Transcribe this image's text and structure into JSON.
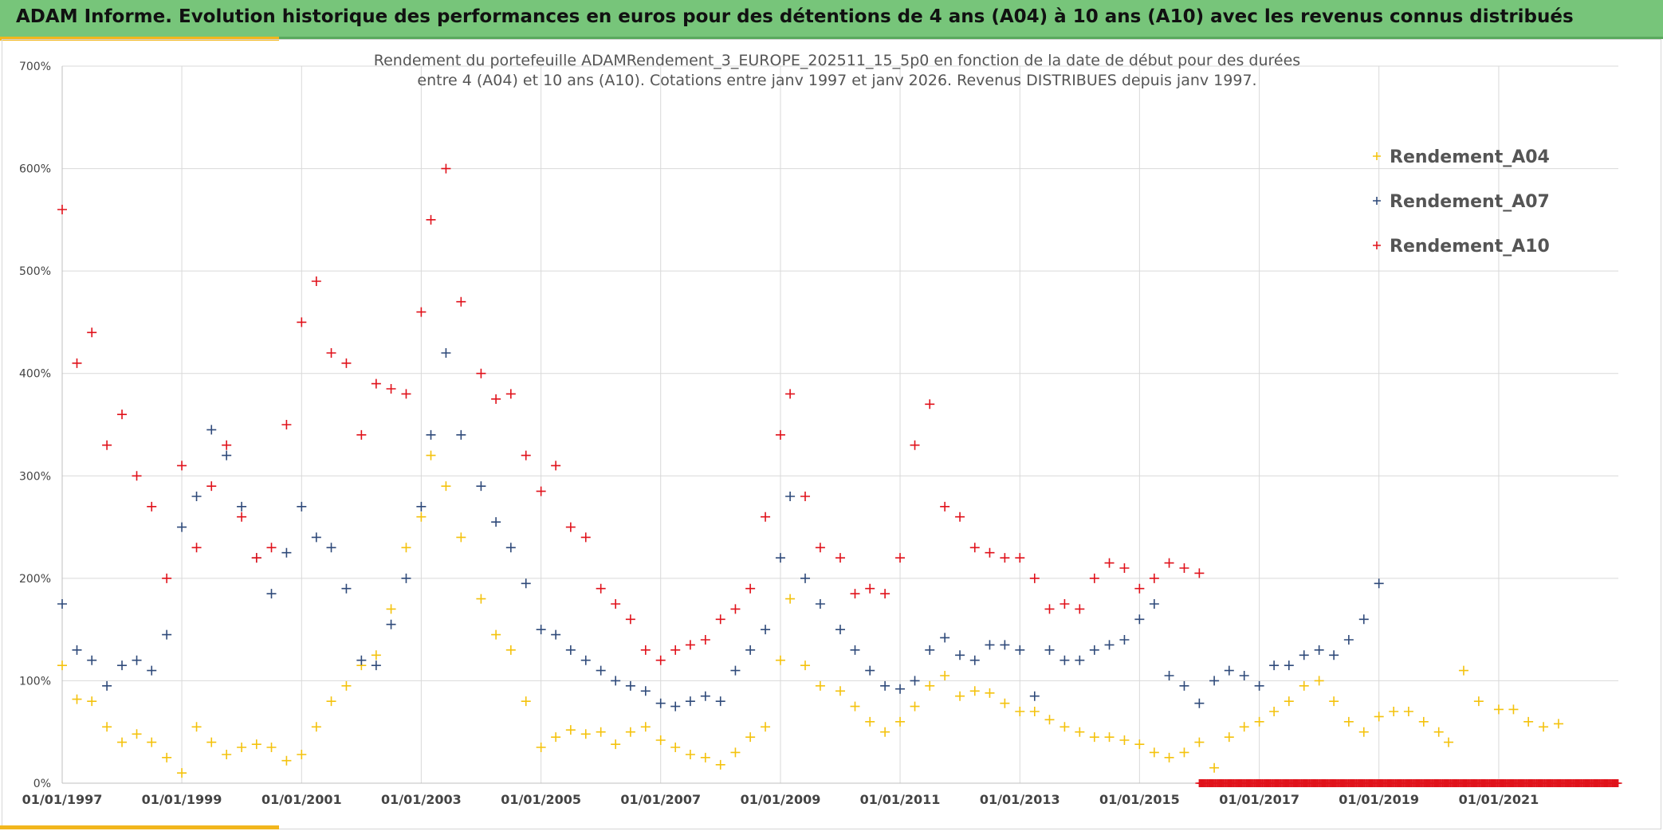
{
  "banner": {
    "title": "ADAM Informe. Evolution historique des performances en euros pour des détentions de 4 ans (A04) à 10 ans (A10) avec les revenus connus distribués"
  },
  "colors": {
    "banner": "#77c57a",
    "accent": "#f2b61c",
    "A04": "#f4c20d",
    "A07": "#2f4a7a",
    "A10": "#e0121b",
    "grid": "#d9d9d9"
  },
  "chart_data": {
    "type": "scatter",
    "title_line1": "Rendement du portefeuille ADAMRendement_3_EUROPE_202511_15_5p0  en fonction de la date de début pour des durées",
    "title_line2": "entre 4 (A04) et 10 ans (A10). Cotations entre janv 1997 et janv 2026. Revenus DISTRIBUES depuis janv 1997.",
    "marker": "+",
    "xlim": [
      "1997-01-01",
      "2023-01-01"
    ],
    "ylim": [
      0,
      7
    ],
    "y_ticks": [
      0,
      1,
      2,
      3,
      4,
      5,
      6,
      7
    ],
    "y_tick_labels": [
      "0%",
      "100%",
      "200%",
      "300%",
      "400%",
      "500%",
      "600%",
      "700%"
    ],
    "x_ticks": [
      "1997-01-01",
      "1999-01-01",
      "2001-01-01",
      "2003-01-01",
      "2005-01-01",
      "2007-01-01",
      "2009-01-01",
      "2011-01-01",
      "2013-01-01",
      "2015-01-01",
      "2017-01-01",
      "2019-01-01",
      "2021-01-01"
    ],
    "x_tick_labels": [
      "01/01/1997",
      "01/01/1999",
      "01/01/2001",
      "01/01/2003",
      "01/01/2005",
      "01/01/2007",
      "01/01/2009",
      "01/01/2011",
      "01/01/2013",
      "01/01/2015",
      "01/01/2017",
      "01/01/2019",
      "01/01/2021"
    ],
    "grid": true,
    "legend": "right",
    "series": [
      {
        "name": "Rendement_A04",
        "color": "#f4c20d",
        "x": [
          "1997-01-01",
          "1997-04-01",
          "1997-07-01",
          "1997-10-01",
          "1998-01-01",
          "1998-04-01",
          "1998-07-01",
          "1998-10-01",
          "1999-01-01",
          "1999-04-01",
          "1999-07-01",
          "1999-10-01",
          "2000-01-01",
          "2000-04-01",
          "2000-07-01",
          "2000-10-01",
          "2001-01-01",
          "2001-04-01",
          "2001-07-01",
          "2001-10-01",
          "2002-01-01",
          "2002-04-01",
          "2002-07-01",
          "2002-10-01",
          "2003-01-01",
          "2003-03-01",
          "2003-06-01",
          "2003-09-01",
          "2004-01-01",
          "2004-04-01",
          "2004-07-01",
          "2004-10-01",
          "2005-01-01",
          "2005-04-01",
          "2005-07-01",
          "2005-10-01",
          "2006-01-01",
          "2006-04-01",
          "2006-07-01",
          "2006-10-01",
          "2007-01-01",
          "2007-04-01",
          "2007-07-01",
          "2007-10-01",
          "2008-01-01",
          "2008-04-01",
          "2008-07-01",
          "2008-10-01",
          "2009-01-01",
          "2009-03-01",
          "2009-06-01",
          "2009-09-01",
          "2010-01-01",
          "2010-04-01",
          "2010-07-01",
          "2010-10-01",
          "2011-01-01",
          "2011-04-01",
          "2011-07-01",
          "2011-10-01",
          "2012-01-01",
          "2012-04-01",
          "2012-07-01",
          "2012-10-01",
          "2013-01-01",
          "2013-04-01",
          "2013-07-01",
          "2013-10-01",
          "2014-01-01",
          "2014-04-01",
          "2014-07-01",
          "2014-10-01",
          "2015-01-01",
          "2015-04-01",
          "2015-07-01",
          "2015-10-01",
          "2016-01-01",
          "2016-04-01",
          "2016-07-01",
          "2016-10-01",
          "2017-01-01",
          "2017-04-01",
          "2017-07-01",
          "2017-10-01",
          "2018-01-01",
          "2018-04-01",
          "2018-07-01",
          "2018-10-01",
          "2019-01-01",
          "2019-04-01",
          "2019-07-01",
          "2019-10-01",
          "2020-01-01",
          "2020-03-01",
          "2020-06-01",
          "2020-09-01",
          "2021-01-01",
          "2021-04-01",
          "2021-07-01",
          "2021-10-01",
          "2022-01-01"
        ],
        "values": [
          1.15,
          0.82,
          0.8,
          0.55,
          0.4,
          0.48,
          0.4,
          0.25,
          0.1,
          0.55,
          0.4,
          0.28,
          0.35,
          0.38,
          0.35,
          0.22,
          0.28,
          0.55,
          0.8,
          0.95,
          1.15,
          1.25,
          1.7,
          2.3,
          2.6,
          3.2,
          2.9,
          2.4,
          1.8,
          1.45,
          1.3,
          0.8,
          0.35,
          0.45,
          0.52,
          0.48,
          0.5,
          0.38,
          0.5,
          0.55,
          0.42,
          0.35,
          0.28,
          0.25,
          0.18,
          0.3,
          0.45,
          0.55,
          1.2,
          1.8,
          1.15,
          0.95,
          0.9,
          0.75,
          0.6,
          0.5,
          0.6,
          0.75,
          0.95,
          1.05,
          0.85,
          0.9,
          0.88,
          0.78,
          0.7,
          0.7,
          0.62,
          0.55,
          0.5,
          0.45,
          0.45,
          0.42,
          0.38,
          0.3,
          0.25,
          0.3,
          0.4,
          0.15,
          0.45,
          0.55,
          0.6,
          0.7,
          0.8,
          0.95,
          1.0,
          0.8,
          0.6,
          0.5,
          0.65,
          0.7,
          0.7,
          0.6,
          0.5,
          0.4,
          1.1,
          0.8,
          0.72,
          0.72,
          0.6,
          0.55,
          0.58
        ]
      },
      {
        "name": "Rendement_A07",
        "color": "#2f4a7a",
        "x": [
          "1997-01-01",
          "1997-04-01",
          "1997-07-01",
          "1997-10-01",
          "1998-01-01",
          "1998-04-01",
          "1998-07-01",
          "1998-10-01",
          "1999-01-01",
          "1999-04-01",
          "1999-07-01",
          "1999-10-01",
          "2000-01-01",
          "2000-04-01",
          "2000-07-01",
          "2000-10-01",
          "2001-01-01",
          "2001-04-01",
          "2001-07-01",
          "2001-10-01",
          "2002-01-01",
          "2002-04-01",
          "2002-07-01",
          "2002-10-01",
          "2003-01-01",
          "2003-03-01",
          "2003-06-01",
          "2003-09-01",
          "2004-01-01",
          "2004-04-01",
          "2004-07-01",
          "2004-10-01",
          "2005-01-01",
          "2005-04-01",
          "2005-07-01",
          "2005-10-01",
          "2006-01-01",
          "2006-04-01",
          "2006-07-01",
          "2006-10-01",
          "2007-01-01",
          "2007-04-01",
          "2007-07-01",
          "2007-10-01",
          "2008-01-01",
          "2008-04-01",
          "2008-07-01",
          "2008-10-01",
          "2009-01-01",
          "2009-03-01",
          "2009-06-01",
          "2009-09-01",
          "2010-01-01",
          "2010-04-01",
          "2010-07-01",
          "2010-10-01",
          "2011-01-01",
          "2011-04-01",
          "2011-07-01",
          "2011-10-01",
          "2012-01-01",
          "2012-04-01",
          "2012-07-01",
          "2012-10-01",
          "2013-01-01",
          "2013-04-01",
          "2013-07-01",
          "2013-10-01",
          "2014-01-01",
          "2014-04-01",
          "2014-07-01",
          "2014-10-01",
          "2015-01-01",
          "2015-04-01",
          "2015-07-01",
          "2015-10-01",
          "2016-01-01",
          "2016-04-01",
          "2016-07-01",
          "2016-10-01",
          "2017-01-01",
          "2017-04-01",
          "2017-07-01",
          "2017-10-01",
          "2018-01-01",
          "2018-04-01",
          "2018-07-01",
          "2018-10-01",
          "2019-01-01"
        ],
        "values": [
          1.75,
          1.3,
          1.2,
          0.95,
          1.15,
          1.2,
          1.1,
          1.45,
          2.5,
          2.8,
          3.45,
          3.2,
          2.7,
          2.2,
          1.85,
          2.25,
          2.7,
          2.4,
          2.3,
          1.9,
          1.2,
          1.15,
          1.55,
          2.0,
          2.7,
          3.4,
          4.2,
          3.4,
          2.9,
          2.55,
          2.3,
          1.95,
          1.5,
          1.45,
          1.3,
          1.2,
          1.1,
          1.0,
          0.95,
          0.9,
          0.78,
          0.75,
          0.8,
          0.85,
          0.8,
          1.1,
          1.3,
          1.5,
          2.2,
          2.8,
          2.0,
          1.75,
          1.5,
          1.3,
          1.1,
          0.95,
          0.92,
          1.0,
          1.3,
          1.42,
          1.25,
          1.2,
          1.35,
          1.35,
          1.3,
          0.85,
          1.3,
          1.2,
          1.2,
          1.3,
          1.35,
          1.4,
          1.6,
          1.75,
          1.05,
          0.95,
          0.78,
          1.0,
          1.1,
          1.05,
          0.95,
          1.15,
          1.15,
          1.25,
          1.3,
          1.25,
          1.4,
          1.6,
          1.95
        ]
      },
      {
        "name": "Rendement_A10",
        "color": "#e0121b",
        "x": [
          "1997-01-01",
          "1997-04-01",
          "1997-07-01",
          "1997-10-01",
          "1998-01-01",
          "1998-04-01",
          "1998-07-01",
          "1998-10-01",
          "1999-01-01",
          "1999-04-01",
          "1999-07-01",
          "1999-10-01",
          "2000-01-01",
          "2000-04-01",
          "2000-07-01",
          "2000-10-01",
          "2001-01-01",
          "2001-04-01",
          "2001-07-01",
          "2001-10-01",
          "2002-01-01",
          "2002-04-01",
          "2002-07-01",
          "2002-10-01",
          "2003-01-01",
          "2003-03-01",
          "2003-06-01",
          "2003-09-01",
          "2004-01-01",
          "2004-04-01",
          "2004-07-01",
          "2004-10-01",
          "2005-01-01",
          "2005-04-01",
          "2005-07-01",
          "2005-10-01",
          "2006-01-01",
          "2006-04-01",
          "2006-07-01",
          "2006-10-01",
          "2007-01-01",
          "2007-04-01",
          "2007-07-01",
          "2007-10-01",
          "2008-01-01",
          "2008-04-01",
          "2008-07-01",
          "2008-10-01",
          "2009-01-01",
          "2009-03-01",
          "2009-06-01",
          "2009-09-01",
          "2010-01-01",
          "2010-04-01",
          "2010-07-01",
          "2010-10-01",
          "2011-01-01",
          "2011-04-01",
          "2011-07-01",
          "2011-10-01",
          "2012-01-01",
          "2012-04-01",
          "2012-07-01",
          "2012-10-01",
          "2013-01-01",
          "2013-04-01",
          "2013-07-01",
          "2013-10-01",
          "2014-01-01",
          "2014-04-01",
          "2014-07-01",
          "2014-10-01",
          "2015-01-01",
          "2015-04-01",
          "2015-07-01",
          "2015-10-01",
          "2016-01-01"
        ],
        "values": [
          5.6,
          4.1,
          4.4,
          3.3,
          3.6,
          3.0,
          2.7,
          2.0,
          3.1,
          2.3,
          2.9,
          3.3,
          2.6,
          2.2,
          2.3,
          3.5,
          4.5,
          4.9,
          4.2,
          4.1,
          3.4,
          3.9,
          3.85,
          3.8,
          4.6,
          5.5,
          6.0,
          4.7,
          4.0,
          3.75,
          3.8,
          3.2,
          2.85,
          3.1,
          2.5,
          2.4,
          1.9,
          1.75,
          1.6,
          1.3,
          1.2,
          1.3,
          1.35,
          1.4,
          1.6,
          1.7,
          1.9,
          2.6,
          3.4,
          3.8,
          2.8,
          2.3,
          2.2,
          1.85,
          1.9,
          1.85,
          2.2,
          3.3,
          3.7,
          2.7,
          2.6,
          2.3,
          2.25,
          2.2,
          2.2,
          2.0,
          1.7,
          1.75,
          1.7,
          2.0,
          2.15,
          2.1,
          1.9,
          2.0,
          2.15,
          2.1,
          2.05
        ]
      }
    ],
    "tail_marker_range": [
      "2016-01-01",
      "2023-01-01"
    ],
    "tail_marker_value": 0,
    "tail_marker_color": "#e0121b"
  }
}
